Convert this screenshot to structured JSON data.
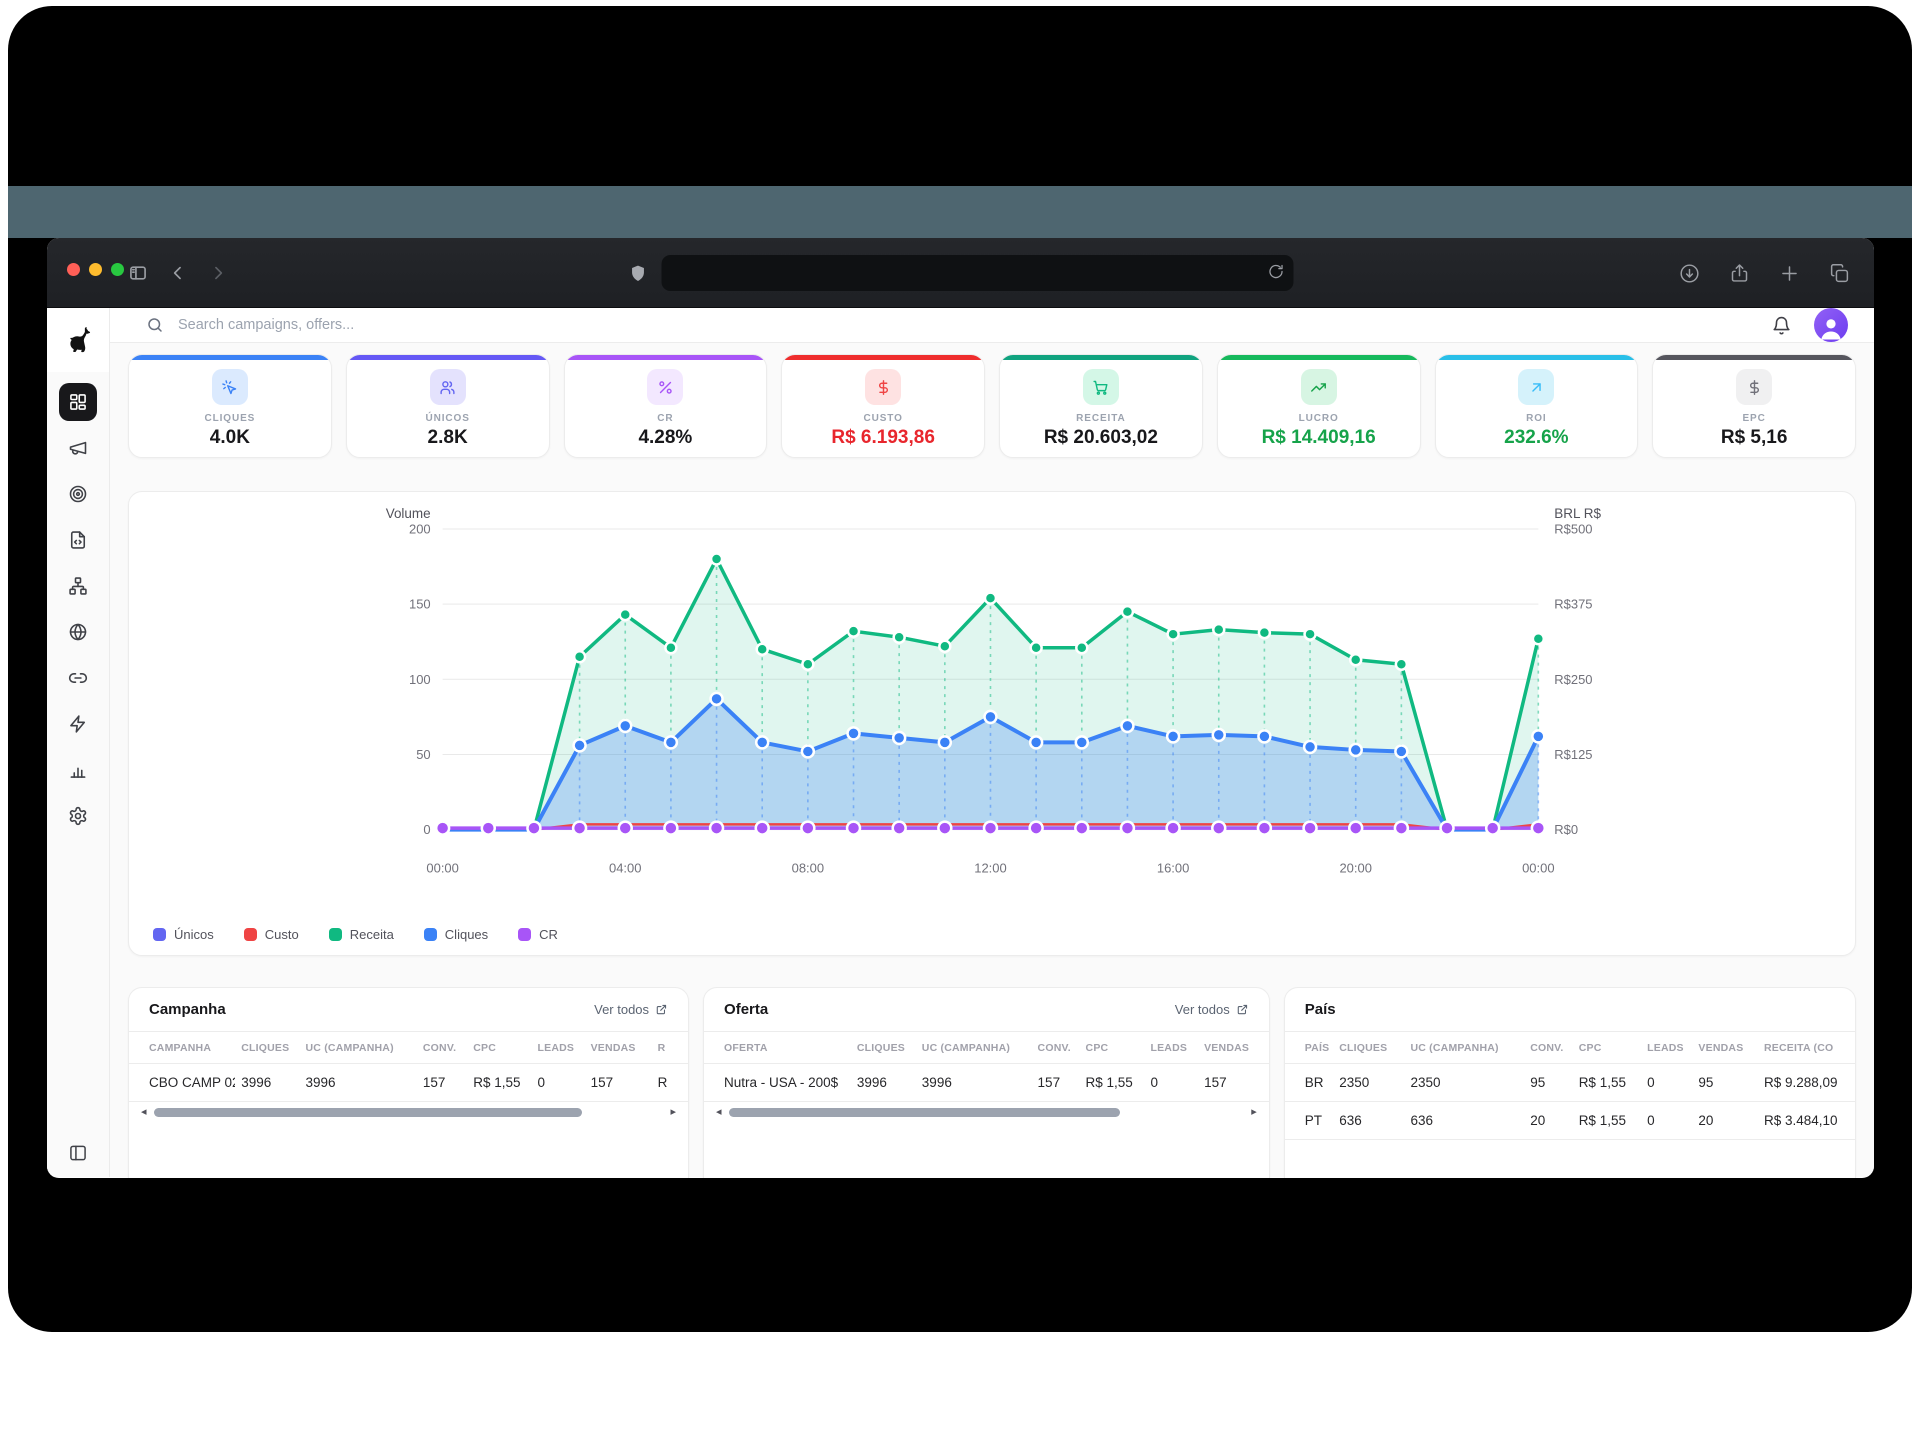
{
  "browser": {
    "traffic_lights": [
      {
        "name": "close-button",
        "color": "#ff5f57"
      },
      {
        "name": "minimize-button",
        "color": "#febc2e"
      },
      {
        "name": "zoom-button",
        "color": "#28c840"
      }
    ],
    "left_icons": [
      {
        "icon": "sidebar-toggle-icon",
        "dim": false
      },
      {
        "icon": "chevron-left-icon",
        "dim": false
      },
      {
        "icon": "chevron-right-icon",
        "dim": true
      }
    ],
    "url_value": "",
    "url_icons": [
      "shield-icon",
      "reload-icon"
    ],
    "right_icons": [
      "download-icon",
      "share-icon",
      "plus-icon",
      "tabs-icon"
    ]
  },
  "header": {
    "logo": "dog-logo",
    "search_placeholder": "Search campaigns, offers...",
    "right_icons": [
      "bell-icon",
      "avatar"
    ]
  },
  "sidebar": {
    "items": [
      {
        "name": "dashboard",
        "icon": "layout-dashboard-icon",
        "active": true
      },
      {
        "name": "campaigns",
        "icon": "megaphone-icon",
        "active": false
      },
      {
        "name": "offers",
        "icon": "target-icon",
        "active": false
      },
      {
        "name": "landers",
        "icon": "file-code-icon",
        "active": false
      },
      {
        "name": "flows",
        "icon": "network-icon",
        "active": false
      },
      {
        "name": "domains",
        "icon": "globe-icon",
        "active": false
      },
      {
        "name": "links",
        "icon": "link-icon",
        "active": false
      },
      {
        "name": "automation",
        "icon": "zap-icon",
        "active": false
      },
      {
        "name": "reports",
        "icon": "bar-chart-icon",
        "active": false
      },
      {
        "name": "settings",
        "icon": "settings-icon",
        "active": false
      }
    ],
    "bottom_icon": "panel-left-icon"
  },
  "kpis": [
    {
      "label": "CLIQUES",
      "value": "4.0K",
      "accent": "#3b82f6",
      "icon": "cursor-click-icon",
      "icon_bg": "#dbeafe",
      "icon_color": "#3b82f6",
      "value_color": "#18181b"
    },
    {
      "label": "ÚNICOS",
      "value": "2.8K",
      "accent": "#6558f5",
      "icon": "users-icon",
      "icon_bg": "#e4e2fd",
      "icon_color": "#6366f1",
      "value_color": "#18181b"
    },
    {
      "label": "CR",
      "value": "4.28%",
      "accent": "#a855f7",
      "icon": "percent-icon",
      "icon_bg": "#f3e8ff",
      "icon_color": "#a855f7",
      "value_color": "#18181b"
    },
    {
      "label": "CUSTO",
      "value": "R$ 6.193,86",
      "accent": "#ef2d2d",
      "icon": "dollar-icon",
      "icon_bg": "#fee2e2",
      "icon_color": "#ef4444",
      "value_color": "#e8262d"
    },
    {
      "label": "RECEITA",
      "value": "R$ 20.603,02",
      "accent": "#10a37f",
      "icon": "cart-icon",
      "icon_bg": "#d4f7e7",
      "icon_color": "#10b981",
      "value_color": "#18181b"
    },
    {
      "label": "LUCRO",
      "value": "R$ 14.409,16",
      "accent": "#16b95c",
      "icon": "trending-up-icon",
      "icon_bg": "#d7f5e3",
      "icon_color": "#16a34a",
      "value_color": "#16a34a"
    },
    {
      "label": "ROI",
      "value": "232.6%",
      "accent": "#29bfe8",
      "icon": "arrow-up-right-icon",
      "icon_bg": "#d5f2fb",
      "icon_color": "#38bdf8",
      "value_color": "#16a34a"
    },
    {
      "label": "EPC",
      "value": "R$ 5,16",
      "accent": "#56565e",
      "icon": "dollar-icon",
      "icon_bg": "#f0f0f1",
      "icon_color": "#71717a",
      "value_color": "#18181b"
    }
  ],
  "chart_data": {
    "type": "area",
    "x_start_hour": 0,
    "x_step_hours": 1,
    "x_ticks": [
      "00:00",
      "04:00",
      "08:00",
      "12:00",
      "16:00",
      "20:00",
      "00:00"
    ],
    "left_axis": {
      "title": "Volume",
      "ticks": [
        200,
        150,
        100,
        50,
        0
      ],
      "max": 200
    },
    "right_axis": {
      "title": "BRL R$",
      "ticks": [
        "R$500",
        "R$375",
        "R$250",
        "R$125",
        "R$0"
      ]
    },
    "grid": true,
    "legend_position": "bottom-left",
    "series": [
      {
        "name": "Únicos",
        "color": "#6366f1",
        "width": 3,
        "dots": false,
        "area": false,
        "values": [
          0,
          0,
          0,
          56,
          69,
          58,
          87,
          58,
          52,
          64,
          61,
          58,
          75,
          58,
          58,
          69,
          62,
          63,
          62,
          55,
          53,
          52,
          0,
          0,
          62
        ]
      },
      {
        "name": "Custo",
        "color": "#ef4444",
        "width": 2.5,
        "dots": "small",
        "area": false,
        "values": [
          0,
          0,
          0,
          3.5,
          3.5,
          3.5,
          3.5,
          3.5,
          3.5,
          3.5,
          3.5,
          3.5,
          3.5,
          3.5,
          3.5,
          3.5,
          3.5,
          3.5,
          3.5,
          3.5,
          3.5,
          3.5,
          0,
          0,
          3.5
        ]
      },
      {
        "name": "Receita",
        "color": "#10b981",
        "width": 3.5,
        "dots": true,
        "area": true,
        "area_fill": "rgba(16,185,129,0.13)",
        "drop_to": "Cliques",
        "values": [
          0,
          0,
          0,
          115,
          143,
          121,
          180,
          120,
          110,
          132,
          128,
          122,
          154,
          121,
          121,
          145,
          130,
          133,
          131,
          130,
          113,
          110,
          0,
          0,
          127
        ]
      },
      {
        "name": "Cliques",
        "color": "#3b82f6",
        "width": 4,
        "dots": true,
        "area": true,
        "area_fill": "rgba(59,130,246,0.27)",
        "drop_to": "zero",
        "values": [
          0,
          0,
          0,
          56,
          69,
          58,
          87,
          58,
          52,
          64,
          61,
          58,
          75,
          58,
          58,
          69,
          62,
          63,
          62,
          55,
          53,
          52,
          0,
          0,
          62
        ]
      },
      {
        "name": "CR",
        "color": "#a855f7",
        "width": 3.5,
        "dots": "always",
        "area": false,
        "values": [
          1,
          1,
          1,
          1,
          1,
          1,
          1,
          1,
          1,
          1,
          1,
          1,
          1,
          1,
          1,
          1,
          1,
          1,
          1,
          1,
          1,
          1,
          1,
          1,
          1
        ]
      }
    ]
  },
  "tables": [
    {
      "id": "campanha",
      "title": "Campanha",
      "link_label": "Ver todos",
      "columns": [
        "CAMPANHA",
        "CLIQUES",
        "UC (CAMPANHA)",
        "CONV.",
        "CPC",
        "LEADS",
        "VENDAS",
        "R"
      ],
      "col_widths": [
        "19%",
        "11.5%",
        "21%",
        "9%",
        "11.5%",
        "9.5%",
        "12%",
        "6.5%"
      ],
      "rows": [
        [
          "CBO CAMP 02",
          "3996",
          "3996",
          "157",
          "R$ 1,55",
          "0",
          "157",
          "R"
        ]
      ],
      "scrollbar": true,
      "thumb_width": "84%"
    },
    {
      "id": "oferta",
      "title": "Oferta",
      "link_label": "Ver todos",
      "columns": [
        "OFERTA",
        "CLIQUES",
        "UC (CAMPANHA)",
        "CONV.",
        "CPC",
        "LEADS",
        "VENDAS"
      ],
      "col_widths": [
        "26%",
        "11.5%",
        "20.5%",
        "8.5%",
        "11.5%",
        "9.5%",
        "12.5%"
      ],
      "rows": [
        [
          "Nutra - USA - 200$",
          "3996",
          "3996",
          "157",
          "R$ 1,55",
          "0",
          "157"
        ]
      ],
      "scrollbar": true,
      "thumb_width": "76%"
    },
    {
      "id": "pais",
      "title": "País",
      "link_label": null,
      "columns": [
        "PAÍS",
        "CLIQUES",
        "UC (CAMPANHA)",
        "CONV.",
        "CPC",
        "LEADS",
        "VENDAS",
        "RECEITA (CO"
      ],
      "col_widths": [
        "8.5%",
        "12.5%",
        "21%",
        "8.5%",
        "12%",
        "9%",
        "11.5%",
        "17%"
      ],
      "rows": [
        [
          "BR",
          "2350",
          "2350",
          "95",
          "R$ 1,55",
          "0",
          "95",
          "R$ 9.288,09"
        ],
        [
          "PT",
          "636",
          "636",
          "20",
          "R$ 1,55",
          "0",
          "20",
          "R$ 3.484,10"
        ]
      ],
      "scrollbar": false,
      "thumb_width": null
    }
  ],
  "colors": {
    "wallpaper_strip": "#4e6670",
    "chrome_bg": "#202226",
    "app_bg": "#fafafa",
    "card_border": "#ececec",
    "grid_line": "#e9e9e9",
    "tick_text": "#71717a"
  }
}
